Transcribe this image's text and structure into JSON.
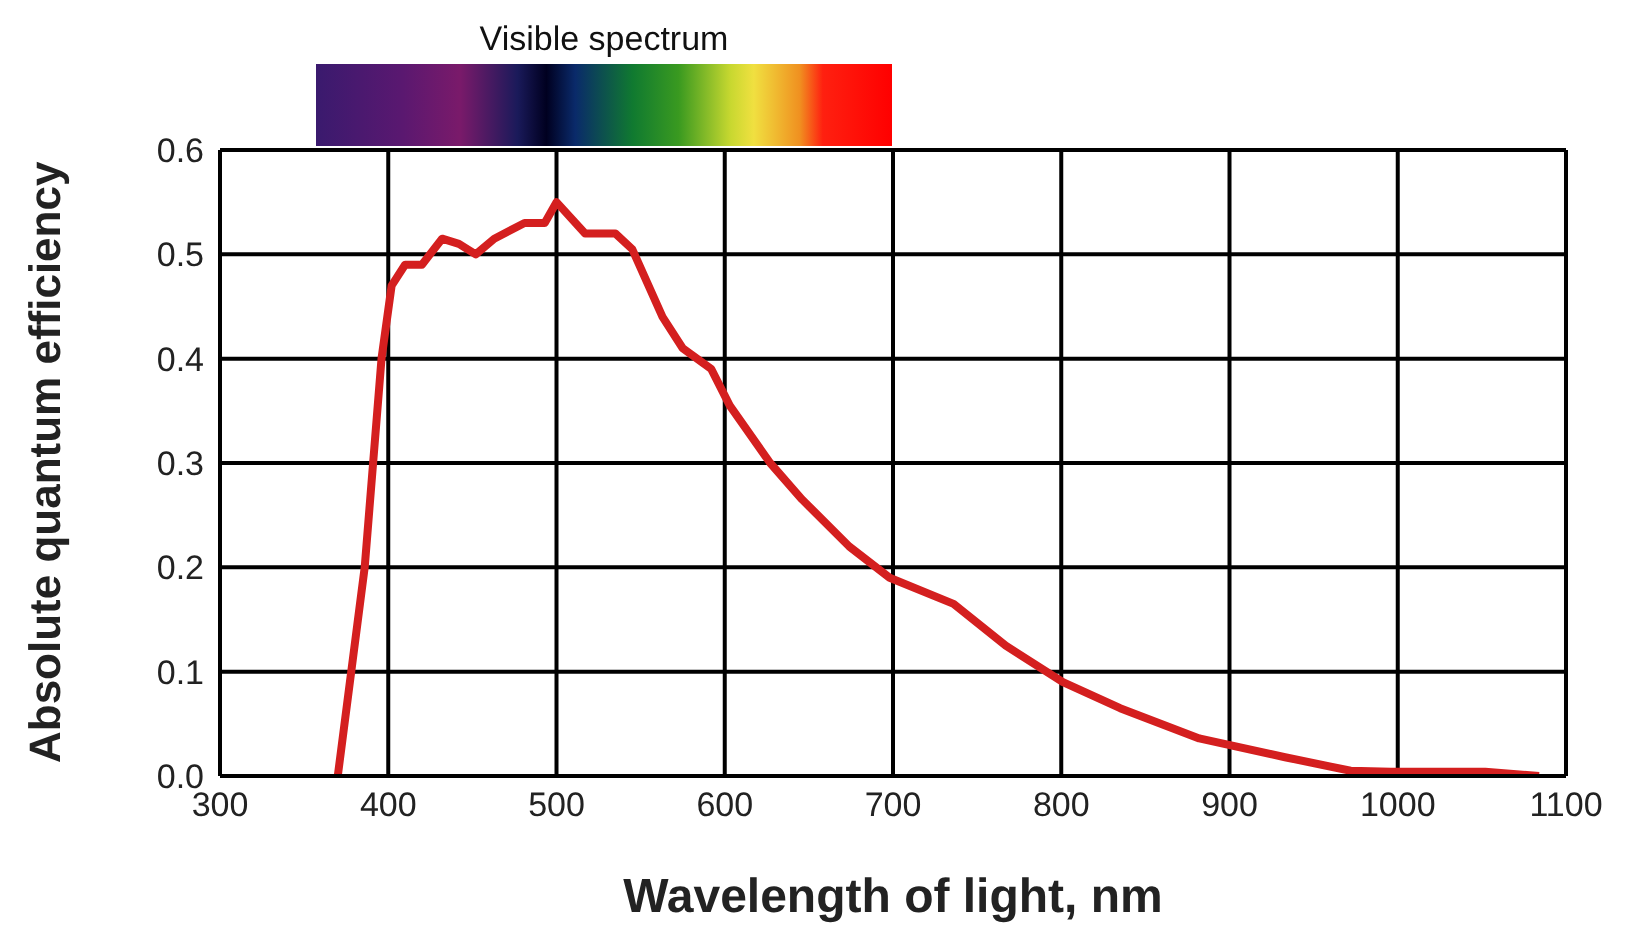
{
  "chart_data": {
    "type": "line",
    "xlabel": "Wavelength of light, nm",
    "ylabel": "Absolute quantum efficiency",
    "annotations": [
      "Visible spectrum"
    ],
    "xlim": [
      300,
      1100
    ],
    "xticks": [
      300,
      400,
      500,
      600,
      700,
      800,
      900,
      1000,
      1100
    ],
    "ylim": [
      0,
      0.6
    ],
    "yticks": [
      {
        "value": 0,
        "label": "0.0"
      },
      0.1,
      0.2,
      0.3,
      0.4,
      0.5,
      0.6
    ],
    "grid": true,
    "series": [
      {
        "color": "#d41f1f",
        "x": [
          370,
          386,
          396,
          402,
          410,
          420,
          432,
          442,
          452,
          463,
          481,
          493,
          500,
          517,
          535,
          545,
          563,
          575,
          592,
          603,
          627,
          646,
          674,
          698,
          736,
          767,
          801,
          835,
          882,
          933,
          972,
          996,
          1052,
          1084
        ],
        "values": [
          0,
          0.2,
          0.4,
          0.47,
          0.49,
          0.49,
          0.515,
          0.51,
          0.5,
          0.515,
          0.53,
          0.53,
          0.55,
          0.52,
          0.52,
          0.505,
          0.44,
          0.41,
          0.39,
          0.355,
          0.3,
          0.265,
          0.22,
          0.19,
          0.165,
          0.125,
          0.09,
          0.065,
          0.036,
          0.018,
          0.005,
          0.004,
          0.004,
          0
        ]
      }
    ]
  }
}
